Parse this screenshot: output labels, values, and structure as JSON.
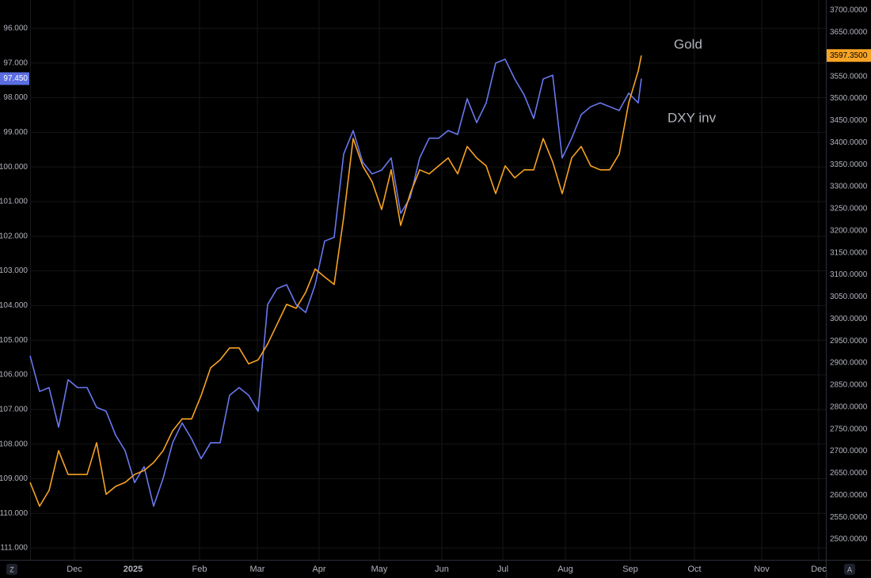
{
  "chart_data": {
    "type": "line",
    "x": [
      0,
      3,
      6,
      9,
      12,
      15,
      18,
      21,
      24,
      27,
      30,
      33,
      36,
      39,
      42,
      45,
      48,
      51,
      54,
      57,
      60,
      63,
      66,
      69,
      72,
      75,
      78,
      81,
      84,
      87,
      90,
      93,
      96,
      99,
      102,
      105,
      108,
      111,
      114,
      117,
      120,
      123,
      126,
      129,
      132,
      135,
      138,
      141,
      144,
      147,
      150,
      153,
      156,
      159,
      162,
      165,
      168,
      171,
      174,
      177,
      180,
      183,
      186,
      189,
      192,
      193
    ],
    "xlim": [
      0,
      251.25
    ],
    "xticks": [
      {
        "value": 14,
        "label": "Dec"
      },
      {
        "value": 32.5,
        "label": "2025"
      },
      {
        "value": 53.5,
        "label": "Feb"
      },
      {
        "value": 71.75,
        "label": "Mar"
      },
      {
        "value": 91.25,
        "label": "Apr"
      },
      {
        "value": 110.25,
        "label": "May"
      },
      {
        "value": 130,
        "label": "Jun"
      },
      {
        "value": 149.25,
        "label": "Jul"
      },
      {
        "value": 169,
        "label": "Aug"
      },
      {
        "value": 189.5,
        "label": "Sep"
      },
      {
        "value": 209.75,
        "label": "Oct"
      },
      {
        "value": 231,
        "label": "Nov"
      },
      {
        "value": 249,
        "label": "Dec"
      }
    ],
    "ylim": [
      111.34,
      95.18
    ],
    "yticks": [
      {
        "value": 96,
        "label": "96.000"
      },
      {
        "value": 97,
        "label": "97.000"
      },
      {
        "value": 98,
        "label": "98.000"
      },
      {
        "value": 99,
        "label": "99.000"
      },
      {
        "value": 100,
        "label": "100.000"
      },
      {
        "value": 101,
        "label": "101.000"
      },
      {
        "value": 102,
        "label": "102.000"
      },
      {
        "value": 103,
        "label": "103.000"
      },
      {
        "value": 104,
        "label": "104.000"
      },
      {
        "value": 105,
        "label": "105.000"
      },
      {
        "value": 106,
        "label": "106.000"
      },
      {
        "value": 107,
        "label": "107.000"
      },
      {
        "value": 108,
        "label": "108.000"
      },
      {
        "value": 109,
        "label": "109.000"
      },
      {
        "value": 110,
        "label": "110.000"
      },
      {
        "value": 111,
        "label": "111.000"
      }
    ],
    "y2lim": [
      2453.4,
      3723.3
    ],
    "y2ticks": [
      {
        "value": 2500,
        "label": "2500.0000"
      },
      {
        "value": 2550,
        "label": "2550.0000"
      },
      {
        "value": 2600,
        "label": "2600.0000"
      },
      {
        "value": 2650,
        "label": "2650.0000"
      },
      {
        "value": 2700,
        "label": "2700.0000"
      },
      {
        "value": 2750,
        "label": "2750.0000"
      },
      {
        "value": 2800,
        "label": "2800.0000"
      },
      {
        "value": 2850,
        "label": "2850.0000"
      },
      {
        "value": 2900,
        "label": "2900.0000"
      },
      {
        "value": 2950,
        "label": "2950.0000"
      },
      {
        "value": 3000,
        "label": "3000.0000"
      },
      {
        "value": 3050,
        "label": "3050.0000"
      },
      {
        "value": 3100,
        "label": "3100.0000"
      },
      {
        "value": 3150,
        "label": "3150.0000"
      },
      {
        "value": 3200,
        "label": "3200.0000"
      },
      {
        "value": 3250,
        "label": "3250.0000"
      },
      {
        "value": 3300,
        "label": "3300.0000"
      },
      {
        "value": 3350,
        "label": "3350.0000"
      },
      {
        "value": 3400,
        "label": "3400.0000"
      },
      {
        "value": 3450,
        "label": "3450.0000"
      },
      {
        "value": 3500,
        "label": "3500.0000"
      },
      {
        "value": 3550,
        "label": "3550.0000"
      },
      {
        "value": 3600,
        "label": "3600.0000"
      },
      {
        "value": 3650,
        "label": "3650.0000"
      },
      {
        "value": 3700,
        "label": "3700.0000"
      }
    ],
    "grid": true,
    "series": [
      {
        "name": "DXY inv",
        "color": "#6878f0",
        "axis": "y",
        "last_price": {
          "value": 97.45,
          "label": "97.450"
        },
        "values": [
          105.45,
          106.48,
          106.37,
          107.51,
          106.14,
          106.37,
          106.37,
          106.94,
          107.05,
          107.74,
          108.19,
          109.11,
          108.65,
          109.79,
          108.99,
          107.96,
          107.39,
          107.85,
          108.42,
          107.96,
          107.96,
          106.59,
          106.37,
          106.59,
          107.05,
          103.97,
          103.51,
          103.4,
          103.97,
          104.2,
          103.4,
          102.14,
          102.03,
          99.63,
          98.95,
          99.86,
          100.2,
          100.09,
          99.74,
          101.34,
          100.89,
          99.74,
          99.17,
          99.17,
          98.95,
          99.06,
          98.03,
          98.72,
          98.15,
          97.0,
          96.89,
          97.46,
          97.92,
          98.6,
          97.46,
          97.35,
          99.74,
          99.17,
          98.49,
          98.26,
          98.15,
          98.26,
          98.37,
          97.87,
          98.15,
          97.45
        ]
      },
      {
        "name": "Gold",
        "color": "#f7a325",
        "axis": "y2",
        "last_price": {
          "value": 3597.35,
          "label": "3597.3500"
        },
        "values": [
          2629,
          2575,
          2611,
          2701,
          2647,
          2647,
          2647,
          2719,
          2602,
          2620,
          2629,
          2647,
          2656,
          2674,
          2701,
          2746,
          2773,
          2773,
          2826,
          2889,
          2907,
          2934,
          2934,
          2898,
          2907,
          2943,
          2988,
          3033,
          3024,
          3060,
          3113,
          3095,
          3078,
          3230,
          3409,
          3347,
          3311,
          3248,
          3338,
          3212,
          3284,
          3338,
          3329,
          3347,
          3365,
          3329,
          3391,
          3365,
          3347,
          3284,
          3347,
          3320,
          3338,
          3338,
          3409,
          3356,
          3284,
          3365,
          3391,
          3347,
          3338,
          3338,
          3374,
          3490,
          3562,
          3597.35
        ]
      }
    ]
  },
  "ui": {
    "left_button": "Z",
    "right_button": "A"
  }
}
